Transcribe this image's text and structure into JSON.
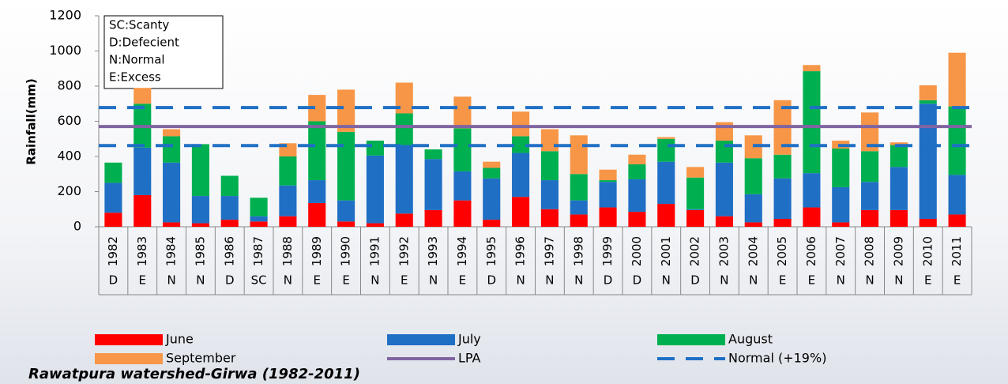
{
  "chart_data": {
    "type": "stacked_bar",
    "y_label": "Rainfall(mm)",
    "footer_title": "Rawatpura watershed-Girwa (1982-2011)",
    "annotations": [
      "SC:Scanty",
      "D:Defecient",
      "N:Normal",
      "E:Excess"
    ],
    "categories": [
      "1982",
      "1983",
      "1984",
      "1985",
      "1986",
      "1987",
      "1988",
      "1989",
      "1990",
      "1991",
      "1992",
      "1993",
      "1994",
      "1995",
      "1996",
      "1997",
      "1998",
      "1999",
      "2000",
      "2001",
      "2002",
      "2003",
      "2004",
      "2005",
      "2006",
      "2007",
      "2008",
      "2009",
      "2010",
      "2011"
    ],
    "classes": [
      "D",
      "E",
      "N",
      "N",
      "D",
      "SC",
      "N",
      "E",
      "E",
      "N",
      "E",
      "N",
      "E",
      "D",
      "N",
      "N",
      "N",
      "D",
      "D",
      "N",
      "D",
      "N",
      "N",
      "E",
      "E",
      "N",
      "N",
      "N",
      "E",
      "E"
    ],
    "series": [
      {
        "name": "June",
        "color": "#ff0000",
        "values": [
          80,
          180,
          25,
          20,
          40,
          30,
          60,
          135,
          30,
          20,
          75,
          95,
          150,
          40,
          170,
          100,
          70,
          110,
          85,
          130,
          95,
          60,
          25,
          45,
          110,
          25,
          95,
          95,
          45,
          70
        ]
      },
      {
        "name": "July",
        "color": "#1f6fc5",
        "values": [
          170,
          270,
          340,
          155,
          135,
          30,
          175,
          130,
          120,
          385,
          390,
          290,
          165,
          235,
          250,
          165,
          80,
          145,
          185,
          240,
          5,
          305,
          160,
          230,
          195,
          200,
          160,
          245,
          655,
          225
        ]
      },
      {
        "name": "August",
        "color": "#00b050",
        "values": [
          115,
          250,
          150,
          295,
          115,
          105,
          165,
          335,
          390,
          85,
          180,
          55,
          245,
          60,
          95,
          165,
          150,
          10,
          85,
          130,
          180,
          125,
          205,
          135,
          580,
          220,
          175,
          125,
          20,
          390
        ]
      },
      {
        "name": "September",
        "color": "#f79646",
        "values": [
          0,
          90,
          40,
          0,
          0,
          0,
          75,
          150,
          240,
          0,
          175,
          0,
          180,
          35,
          140,
          125,
          220,
          60,
          55,
          10,
          60,
          105,
          130,
          310,
          35,
          45,
          220,
          15,
          85,
          305
        ]
      }
    ],
    "reference_lines": [
      {
        "name": "LPA",
        "color": "#8064a2",
        "dashed": false,
        "values": [
          570
        ]
      },
      {
        "name": "Normal (+19%)",
        "color": "#1f6fc5",
        "dashed": true,
        "values": [
          678,
          462
        ]
      }
    ],
    "ylim": [
      0,
      1200
    ],
    "yticks": [
      0,
      200,
      400,
      600,
      800,
      1000,
      1200
    ]
  }
}
